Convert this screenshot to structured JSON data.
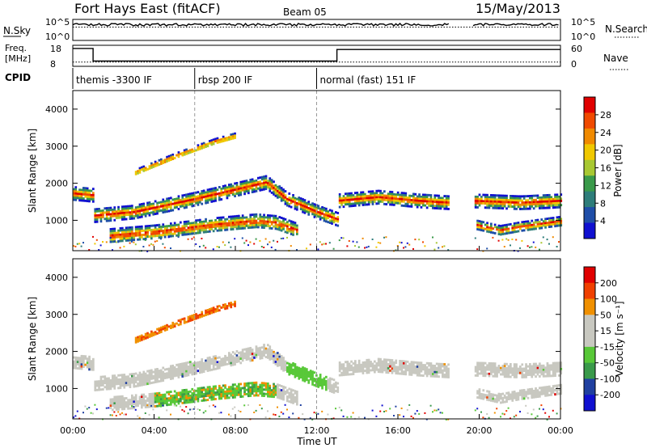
{
  "header": {
    "title": "Fort Hays East (fitACF)",
    "beam": "Beam 05",
    "date": "15/May/2013"
  },
  "noise_panel": {
    "left_label": "N.Sky",
    "right_label": "N.Search",
    "left_ticks": [
      "10^5",
      "10^0"
    ],
    "right_ticks": [
      "10^5",
      "10^0"
    ]
  },
  "freq_panel": {
    "left_label_1": "Freq.",
    "left_label_2": "[MHz]",
    "right_label": "Nave",
    "left_ticks": [
      "18",
      "8"
    ],
    "right_ticks": [
      "60",
      "0"
    ]
  },
  "cpid": {
    "label": "CPID",
    "segments": [
      {
        "name": "themis -3300 IF",
        "start": 0.0
      },
      {
        "name": "rbsp 200 IF",
        "start": 6.0
      },
      {
        "name": "normal (fast) 151 IF",
        "start": 12.0
      }
    ]
  },
  "x_axis": {
    "label": "Time UT",
    "ticks": [
      "00:00",
      "04:00",
      "08:00",
      "12:00",
      "16:00",
      "20:00",
      "00:00"
    ]
  },
  "power_panel": {
    "ylabel": "Slant Range [km]",
    "yticks": [
      "4000",
      "3000",
      "2000",
      "1000"
    ],
    "colorbar_label": "Power [dB]",
    "colorbar_ticks": [
      "28",
      "24",
      "20",
      "16",
      "12",
      "8",
      "4"
    ]
  },
  "velocity_panel": {
    "ylabel": "Slant Range [km]",
    "yticks": [
      "4000",
      "3000",
      "2000",
      "1000"
    ],
    "colorbar_label": "Velocity [m s⁻¹]",
    "colorbar_ticks": [
      "200",
      "100",
      "50",
      "15",
      "-15",
      "-50",
      "-100",
      "-200"
    ]
  },
  "chart_data": {
    "type": "heatmap",
    "x_unit": "hours UT",
    "xlim": [
      0,
      24
    ],
    "ylim": [
      180,
      4500
    ],
    "data_gap": [
      18.5,
      19.7
    ],
    "power_colors": [
      "#1010d0",
      "#1f4ea8",
      "#2e7d7a",
      "#3a9a4a",
      "#a8c832",
      "#f0c800",
      "#f08a00",
      "#f04a00",
      "#e00000"
    ],
    "velocity_colors": [
      "#e00000",
      "#f04000",
      "#f09000",
      "#c8c8c0",
      "#c8c8c0",
      "#58c838",
      "#3a9a4a",
      "#2040a0",
      "#1010d0"
    ],
    "echo_bands": [
      {
        "id": "upper",
        "points": [
          [
            0,
            1750
          ],
          [
            1,
            1700
          ],
          [
            1,
            1150
          ],
          [
            3,
            1250
          ],
          [
            6,
            1600
          ],
          [
            9.5,
            2050
          ],
          [
            10.5,
            1600
          ],
          [
            12,
            1250
          ],
          [
            13,
            1050
          ],
          [
            13,
            1550
          ],
          [
            15,
            1650
          ],
          [
            17,
            1550
          ],
          [
            18.5,
            1500
          ],
          [
            19.7,
            1550
          ],
          [
            22,
            1500
          ],
          [
            24,
            1550
          ]
        ],
        "width_km": 350
      },
      {
        "id": "lower",
        "points": [
          [
            1.8,
            600
          ],
          [
            4,
            700
          ],
          [
            7,
            900
          ],
          [
            9,
            1000
          ],
          [
            10,
            950
          ],
          [
            11,
            750
          ]
        ],
        "width_km": 380
      },
      {
        "id": "high_range",
        "points": [
          [
            3,
            2300
          ],
          [
            5,
            2750
          ],
          [
            7,
            3150
          ],
          [
            8,
            3300
          ]
        ],
        "width_km": 160
      },
      {
        "id": "lower_late",
        "points": [
          [
            19.8,
            900
          ],
          [
            21,
            750
          ],
          [
            22,
            850
          ],
          [
            24,
            1000
          ]
        ],
        "width_km": 250
      }
    ],
    "noise_sky_level": 0.75,
    "freq_mhz": [
      [
        0,
        16.5
      ],
      [
        1,
        16.5
      ],
      [
        1,
        10.5
      ],
      [
        13,
        10.5
      ],
      [
        13,
        16.0
      ],
      [
        18.5,
        16.0
      ],
      [
        19.7,
        16.0
      ],
      [
        24,
        16.0
      ]
    ],
    "nave": [
      [
        0,
        12
      ],
      [
        24,
        12
      ]
    ]
  }
}
